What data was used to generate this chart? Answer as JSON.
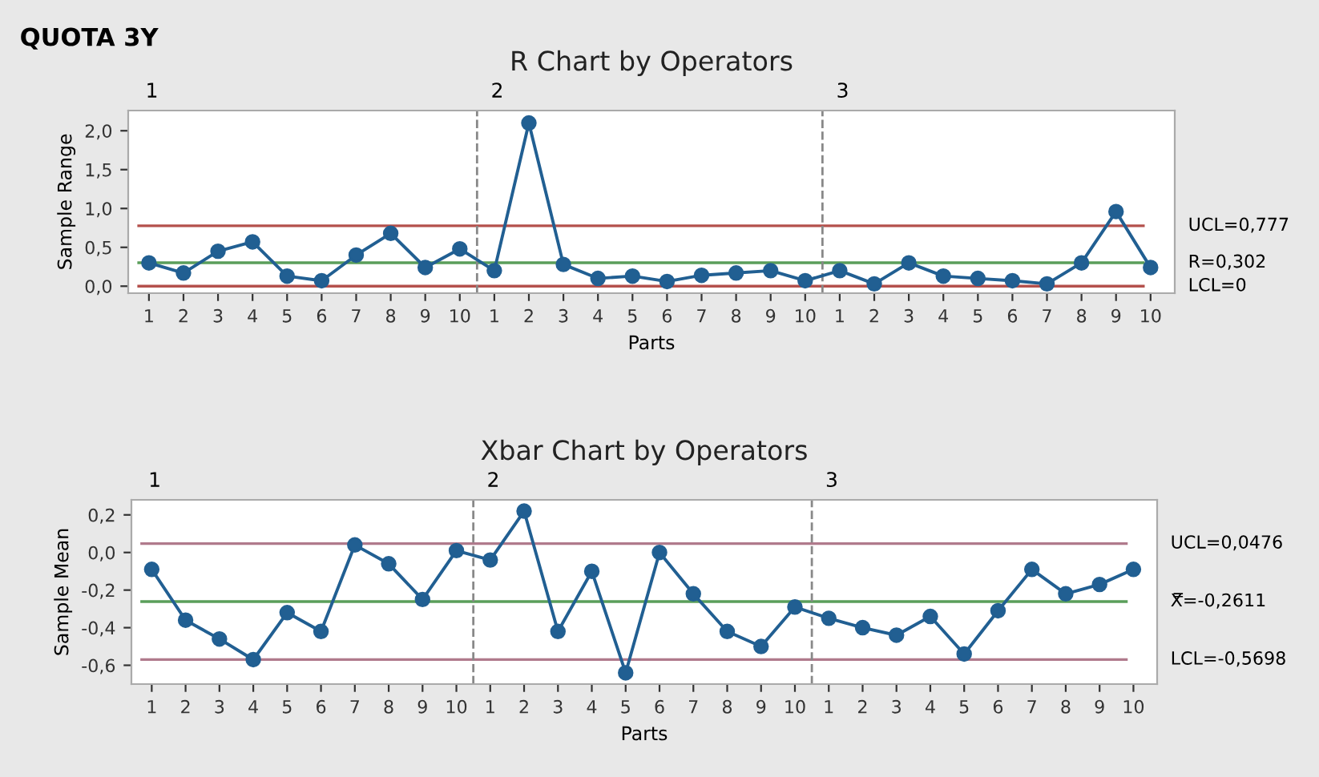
{
  "chart_data": [
    {
      "type": "line",
      "title": "R Chart by Operators",
      "xlabel": "Parts",
      "ylabel": "Sample Range",
      "categories": [
        "1",
        "2",
        "3",
        "4",
        "5",
        "6",
        "7",
        "8",
        "9",
        "10",
        "1",
        "2",
        "3",
        "4",
        "5",
        "6",
        "7",
        "8",
        "9",
        "10",
        "1",
        "2",
        "3",
        "4",
        "5",
        "6",
        "7",
        "8",
        "9",
        "10"
      ],
      "series": [
        {
          "color": "#215f92",
          "values": [
            0.3,
            0.17,
            0.45,
            0.57,
            0.13,
            0.07,
            0.4,
            0.68,
            0.24,
            0.48,
            0.2,
            2.1,
            0.28,
            0.1,
            0.13,
            0.06,
            0.14,
            0.17,
            0.2,
            0.07,
            0.2,
            0.03,
            0.3,
            0.13,
            0.1,
            0.07,
            0.03,
            0.3,
            0.96,
            0.24
          ]
        }
      ],
      "marker": "circle",
      "line_style": "solid",
      "grid": false,
      "legend": false,
      "ylim": [
        -0.09,
        2.26
      ],
      "yticks": [
        {
          "value": 0,
          "label": "0,0"
        },
        {
          "value": 0.5,
          "label": "0,5"
        },
        {
          "value": 1.0,
          "label": "1,0"
        },
        {
          "value": 1.5,
          "label": "1,5"
        },
        {
          "value": 2.0,
          "label": "2,0"
        }
      ],
      "ref_lines": [
        {
          "axis": "y",
          "value": 0.777,
          "label": "UCL=0,777",
          "color": "#b4504c"
        },
        {
          "axis": "y",
          "value": 0.302,
          "label": "R=0,302",
          "color": "#5a9e5a"
        },
        {
          "axis": "y",
          "value": 0,
          "label": "LCL=0",
          "color": "#b4504c"
        }
      ],
      "annotations": [
        "QUOTA 3Y",
        "1",
        "2",
        "3"
      ]
    },
    {
      "type": "line",
      "title": "Xbar Chart by Operators",
      "xlabel": "Parts",
      "ylabel": "Sample Mean",
      "categories": [
        "1",
        "2",
        "3",
        "4",
        "5",
        "6",
        "7",
        "8",
        "9",
        "10",
        "1",
        "2",
        "3",
        "4",
        "5",
        "6",
        "7",
        "8",
        "9",
        "10",
        "1",
        "2",
        "3",
        "4",
        "5",
        "6",
        "7",
        "8",
        "9",
        "10"
      ],
      "series": [
        {
          "color": "#215f92",
          "values": [
            -0.09,
            -0.36,
            -0.46,
            -0.57,
            -0.32,
            -0.42,
            0.04,
            -0.06,
            -0.25,
            0.01,
            -0.04,
            0.22,
            -0.42,
            -0.1,
            -0.64,
            0.0,
            -0.22,
            -0.42,
            -0.5,
            -0.29,
            -0.35,
            -0.4,
            -0.44,
            -0.34,
            -0.54,
            -0.31,
            -0.09,
            -0.22,
            -0.17,
            -0.09
          ]
        }
      ],
      "marker": "circle",
      "line_style": "solid",
      "grid": false,
      "legend": false,
      "ylim": [
        -0.7,
        0.28
      ],
      "yticks": [
        {
          "value": -0.6,
          "label": "-0,6"
        },
        {
          "value": -0.4,
          "label": "-0,4"
        },
        {
          "value": -0.2,
          "label": "-0,2"
        },
        {
          "value": 0.0,
          "label": "0,0"
        },
        {
          "value": 0.2,
          "label": "0,2"
        }
      ],
      "ref_lines": [
        {
          "axis": "y",
          "value": 0.0476,
          "label": "UCL=0,0476",
          "color": "#b07a8c"
        },
        {
          "axis": "y",
          "value": -0.2611,
          "label": "X̿=-0,2611",
          "color": "#5a9e5a"
        },
        {
          "axis": "y",
          "value": -0.5698,
          "label": "LCL=-0,5698",
          "color": "#b07a8c"
        }
      ],
      "annotations": [
        "1",
        "2",
        "3"
      ]
    }
  ]
}
